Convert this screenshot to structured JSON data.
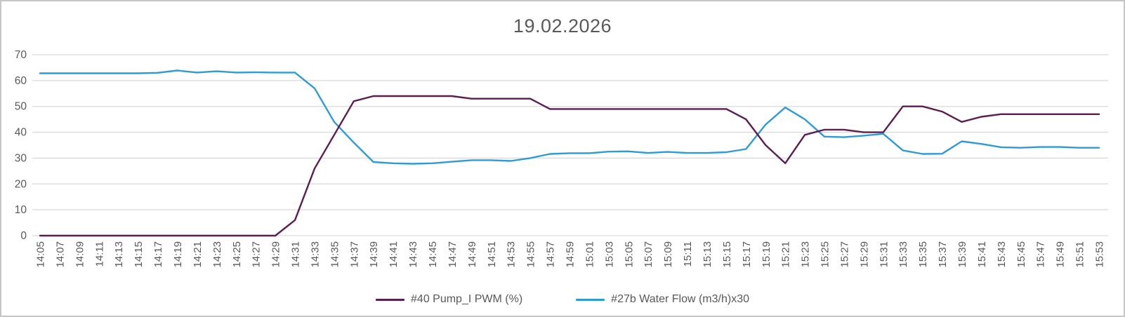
{
  "title": "19.02.2026",
  "chart_data": {
    "type": "line",
    "title": "19.02.2026",
    "xlabel": "",
    "ylabel": "",
    "ylim": [
      0,
      70
    ],
    "y_ticks": [
      0,
      10,
      20,
      30,
      40,
      50,
      60,
      70
    ],
    "grid": "horizontal",
    "legend_position": "bottom",
    "categories": [
      "14:05",
      "14:07",
      "14:09",
      "14:11",
      "14:13",
      "14:15",
      "14:17",
      "14:19",
      "14:21",
      "14:23",
      "14:25",
      "14:27",
      "14:29",
      "14:31",
      "14:33",
      "14:35",
      "14:37",
      "14:39",
      "14:41",
      "14:43",
      "14:45",
      "14:47",
      "14:49",
      "14:51",
      "14:53",
      "14:55",
      "14:57",
      "14:59",
      "15:01",
      "15:03",
      "15:05",
      "15:07",
      "15:09",
      "15:11",
      "15:13",
      "15:15",
      "15:17",
      "15:19",
      "15:21",
      "15:23",
      "15:25",
      "15:27",
      "15:29",
      "15:31",
      "15:33",
      "15:35",
      "15:37",
      "15:39",
      "15:41",
      "15:43",
      "15:45",
      "15:47",
      "15:49",
      "15:51",
      "15:53"
    ],
    "series": [
      {
        "name": "#40 Pump_I PWM (%)",
        "color": "#5C1D50",
        "values": [
          0,
          0,
          0,
          0,
          0,
          0,
          0,
          0,
          0,
          0,
          0,
          0,
          0,
          6,
          26,
          39,
          52,
          54,
          54,
          54,
          54,
          54,
          53,
          53,
          53,
          53,
          49,
          49,
          49,
          49,
          49,
          49,
          49,
          49,
          49,
          49,
          45,
          35,
          28,
          39,
          41,
          41,
          40,
          40,
          50,
          50,
          48,
          44,
          46,
          47,
          47,
          47,
          47,
          47,
          47
        ]
      },
      {
        "name": "#27b Water Flow (m3/h)x30",
        "color": "#2E9BD5",
        "values": [
          62.8,
          62.8,
          62.8,
          62.8,
          62.8,
          62.8,
          63.0,
          63.9,
          63.1,
          63.6,
          63.1,
          63.2,
          63.1,
          63.1,
          57,
          44,
          36,
          28.5,
          28,
          27.8,
          28,
          28.6,
          29.2,
          29.2,
          28.9,
          30,
          31.6,
          31.9,
          31.9,
          32.5,
          32.6,
          32.0,
          32.4,
          32.0,
          32.0,
          32.3,
          33.5,
          43,
          49.6,
          45,
          38.3,
          38.1,
          38.7,
          39.4,
          33,
          31.6,
          31.7,
          36.5,
          35.5,
          34.2,
          34.0,
          34.3,
          34.3,
          34.0,
          34.0
        ]
      }
    ]
  },
  "colors": {
    "grid": "#D9D9D9",
    "axis_text": "#595959",
    "title_text": "#595959",
    "background": "#FFFFFF",
    "frame_border": "#C6C6C6"
  }
}
